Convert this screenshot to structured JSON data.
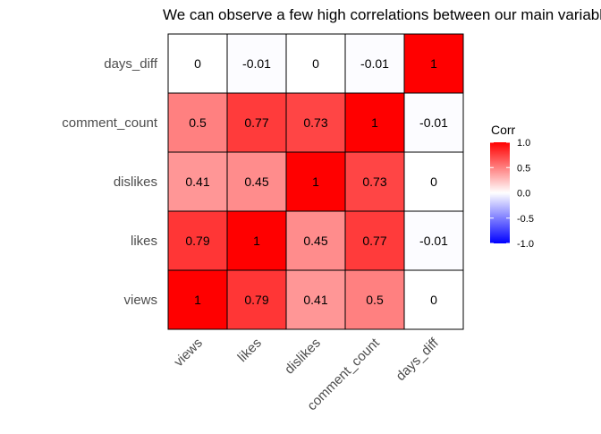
{
  "chart_data": {
    "type": "heatmap",
    "title": "We can observe a few high correlations between our main variables",
    "x_categories": [
      "views",
      "likes",
      "dislikes",
      "comment_count",
      "days_diff"
    ],
    "y_categories": [
      "views",
      "likes",
      "dislikes",
      "comment_count",
      "days_diff"
    ],
    "matrix": [
      [
        1,
        0.79,
        0.41,
        0.5,
        0
      ],
      [
        0.79,
        1,
        0.45,
        0.77,
        -0.01
      ],
      [
        0.41,
        0.45,
        1,
        0.73,
        0
      ],
      [
        0.5,
        0.77,
        0.73,
        1,
        -0.01
      ],
      [
        0,
        -0.01,
        0,
        -0.01,
        1
      ]
    ],
    "cell_labels": [
      [
        "1",
        "0.79",
        "0.41",
        "0.5",
        "0"
      ],
      [
        "0.79",
        "1",
        "0.45",
        "0.77",
        "-0.01"
      ],
      [
        "0.41",
        "0.45",
        "1",
        "0.73",
        "0"
      ],
      [
        "0.5",
        "0.77",
        "0.73",
        "1",
        "-0.01"
      ],
      [
        "0",
        "-0.01",
        "0",
        "-0.01",
        "1"
      ]
    ],
    "legend": {
      "title": "Corr",
      "range": [
        -1,
        1
      ],
      "ticks": [
        "1.0",
        "0.5",
        "0.0",
        "-0.5",
        "-1.0"
      ],
      "tick_values": [
        1,
        0.5,
        0,
        -0.5,
        -1
      ],
      "colors": {
        "low": "#0000ff",
        "mid": "#ffffff",
        "high": "#ff0000"
      },
      "placement": "right"
    },
    "cell_border_color": "#000000",
    "grid": true
  }
}
